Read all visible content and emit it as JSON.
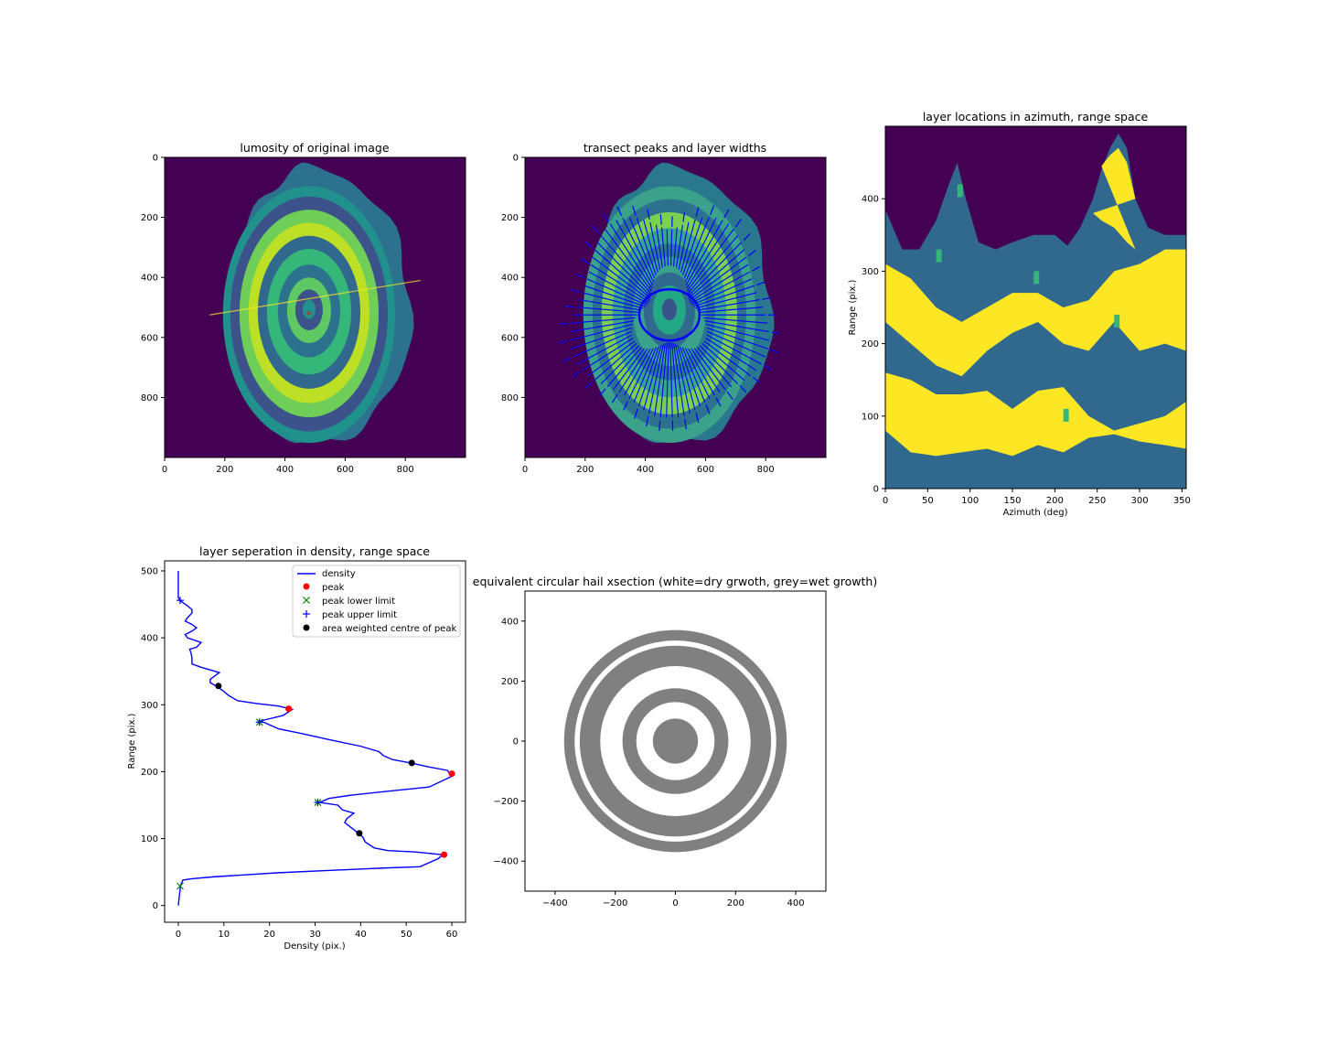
{
  "chart_data": [
    {
      "type": "heatmap",
      "title": "lumosity of original image",
      "xlabel": "",
      "ylabel": "",
      "xlim": [
        0,
        1000
      ],
      "ylim": [
        1000,
        0
      ],
      "xticks": [
        "0",
        "200",
        "400",
        "600",
        "800"
      ],
      "yticks": [
        "0",
        "200",
        "400",
        "600",
        "800"
      ],
      "colormap": "viridis",
      "marker_label": "red star at hail centre",
      "marker": {
        "x": 480,
        "y": 525
      }
    },
    {
      "type": "heatmap",
      "title": "transect peaks and layer widths",
      "xlabel": "",
      "ylabel": "",
      "xlim": [
        0,
        1000
      ],
      "ylim": [
        1000,
        0
      ],
      "xticks": [
        "0",
        "200",
        "400",
        "600",
        "800"
      ],
      "yticks": [
        "0",
        "200",
        "400",
        "600",
        "800"
      ],
      "colormap": "viridis",
      "arrow_color": "#0000ff",
      "centre": {
        "x": 480,
        "y": 525
      }
    },
    {
      "type": "heatmap",
      "title": "layer locations in azimuth, range space",
      "xlabel": "Azimuth (deg)",
      "ylabel": "Range (pix.)",
      "xlim": [
        0,
        355
      ],
      "ylim": [
        0,
        500
      ],
      "xticks": [
        "0",
        "50",
        "100",
        "150",
        "200",
        "250",
        "300",
        "350"
      ],
      "yticks": [
        "0",
        "100",
        "200",
        "300",
        "400"
      ],
      "colors": {
        "outside": "#440154",
        "wet": "#31688e",
        "dry": "#fde725",
        "mixed": "#35b779"
      }
    },
    {
      "type": "line",
      "title": "layer seperation in density, range space",
      "xlabel": "Density (pix.)",
      "ylabel": "Range (pix.)",
      "xlim": [
        -3,
        63
      ],
      "ylim": [
        -25,
        515
      ],
      "xticks": [
        "0",
        "10",
        "20",
        "30",
        "40",
        "50",
        "60"
      ],
      "yticks": [
        "0",
        "100",
        "200",
        "300",
        "400",
        "500"
      ],
      "legend": [
        "density",
        "peak",
        "peak lower limit",
        "peak upper limit",
        "area weighted centre of peak"
      ],
      "legend_position": "top-right",
      "density": [
        [
          0,
          0
        ],
        [
          0.5,
          30
        ],
        [
          1,
          38
        ],
        [
          3,
          40
        ],
        [
          8,
          43
        ],
        [
          15,
          46
        ],
        [
          22,
          49
        ],
        [
          35,
          53
        ],
        [
          45,
          56
        ],
        [
          53,
          58
        ],
        [
          57,
          70
        ],
        [
          58,
          76
        ],
        [
          52,
          80
        ],
        [
          46,
          82
        ],
        [
          43,
          86
        ],
        [
          41,
          95
        ],
        [
          40.5,
          102
        ],
        [
          39.5,
          108
        ],
        [
          38,
          116
        ],
        [
          36.5,
          124
        ],
        [
          37,
          130
        ],
        [
          38.5,
          138
        ],
        [
          36,
          143
        ],
        [
          35,
          150
        ],
        [
          31,
          154
        ],
        [
          33,
          160
        ],
        [
          38,
          165
        ],
        [
          45,
          170
        ],
        [
          55,
          177
        ],
        [
          60,
          193
        ],
        [
          59,
          202
        ],
        [
          55,
          207
        ],
        [
          51,
          213
        ],
        [
          47,
          218
        ],
        [
          45,
          224
        ],
        [
          44,
          230
        ],
        [
          40,
          238
        ],
        [
          33,
          248
        ],
        [
          27,
          257
        ],
        [
          22,
          264
        ],
        [
          18,
          276
        ],
        [
          20,
          279
        ],
        [
          23,
          284
        ],
        [
          25,
          293
        ],
        [
          22,
          298
        ],
        [
          17,
          302
        ],
        [
          13,
          306
        ],
        [
          11,
          314
        ],
        [
          10,
          320
        ],
        [
          8.5,
          327
        ],
        [
          7,
          333
        ],
        [
          7,
          338
        ],
        [
          8,
          343
        ],
        [
          9,
          348
        ],
        [
          7,
          352
        ],
        [
          5,
          356
        ],
        [
          3,
          361
        ],
        [
          3,
          365
        ],
        [
          3,
          370
        ],
        [
          2.8,
          377
        ],
        [
          2.5,
          383
        ],
        [
          4,
          386
        ],
        [
          5,
          393
        ],
        [
          2,
          400
        ],
        [
          1.5,
          405
        ],
        [
          3,
          410
        ],
        [
          4,
          415
        ],
        [
          3,
          420
        ],
        [
          1.5,
          425
        ],
        [
          2,
          430
        ],
        [
          3,
          437
        ],
        [
          3,
          442
        ],
        [
          2,
          448
        ],
        [
          0.5,
          455
        ],
        [
          0,
          460
        ],
        [
          0,
          500
        ]
      ],
      "peaks": [
        [
          58.3,
          76
        ],
        [
          60,
          197
        ],
        [
          24.2,
          294
        ]
      ],
      "lower_limits": [
        [
          0.4,
          29
        ],
        [
          17.8,
          274
        ],
        [
          30.6,
          154
        ]
      ],
      "upper_limits": [
        [
          0.4,
          456
        ],
        [
          17.8,
          274
        ],
        [
          30.6,
          154
        ]
      ],
      "centres": [
        [
          39.7,
          108
        ],
        [
          51.2,
          213
        ],
        [
          8.8,
          328
        ]
      ]
    },
    {
      "type": "other",
      "title": "equivalent circular hail xsection (white=dry grwoth, grey=wet growth)",
      "xlabel": "",
      "ylabel": "",
      "xlim": [
        -500,
        500
      ],
      "ylim": [
        -500,
        500
      ],
      "xticks": [
        "−400",
        "−200",
        "0",
        "200",
        "400"
      ],
      "yticks": [
        "400",
        "200",
        "0",
        "−200",
        "−400"
      ],
      "rings": [
        {
          "r": 370,
          "color": "grey"
        },
        {
          "r": 335,
          "color": "white"
        },
        {
          "r": 318,
          "color": "grey"
        },
        {
          "r": 250,
          "color": "white"
        },
        {
          "r": 176,
          "color": "grey"
        },
        {
          "r": 130,
          "color": "white"
        },
        {
          "r": 75,
          "color": "grey"
        }
      ]
    }
  ]
}
